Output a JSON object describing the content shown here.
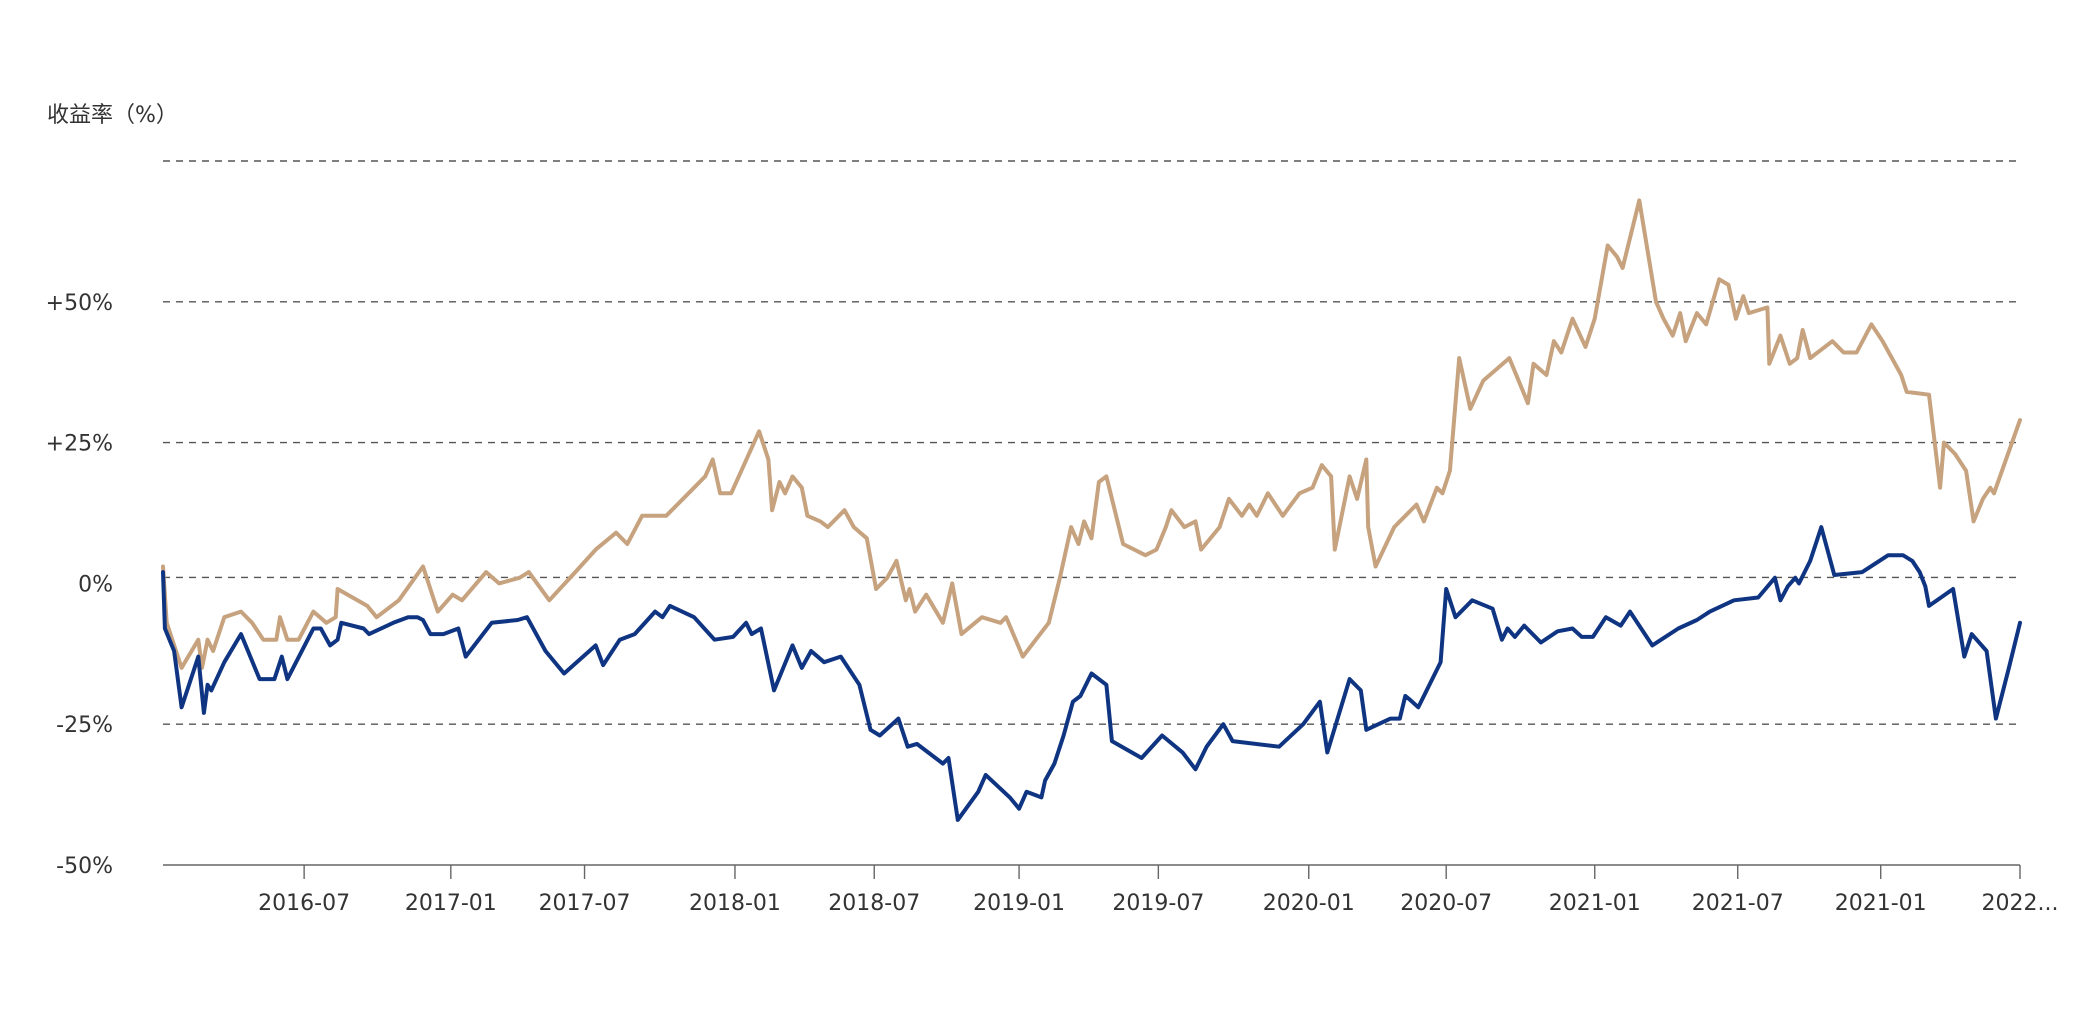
{
  "chart_data": {
    "type": "line",
    "ylabel": "收益率（%）",
    "y_ticks": [
      {
        "value": 50,
        "label": "+50%"
      },
      {
        "value": 25,
        "label": "+25%"
      },
      {
        "value": 0,
        "label": "0%"
      },
      {
        "value": -25,
        "label": "-25%"
      },
      {
        "value": -50,
        "label": "-50%"
      }
    ],
    "ylim": [
      -50,
      75
    ],
    "xlim": [
      0,
      100
    ],
    "x_ticks": [
      {
        "x": 7.6,
        "label": "2016-07"
      },
      {
        "x": 15.5,
        "label": "2017-01"
      },
      {
        "x": 22.7,
        "label": "2017-07"
      },
      {
        "x": 30.8,
        "label": "2018-01"
      },
      {
        "x": 38.3,
        "label": "2018-07"
      },
      {
        "x": 46.1,
        "label": "2019-01"
      },
      {
        "x": 53.6,
        "label": "2019-07"
      },
      {
        "x": 61.7,
        "label": "2020-01"
      },
      {
        "x": 69.1,
        "label": "2020-07"
      },
      {
        "x": 77.1,
        "label": "2021-01"
      },
      {
        "x": 84.8,
        "label": "2021-07"
      },
      {
        "x": 92.5,
        "label": "2021-01"
      },
      {
        "x": 100,
        "label": "2022..."
      }
    ],
    "grid": true,
    "series": [
      {
        "color": "#c6a27e",
        "points": [
          [
            0,
            3
          ],
          [
            0.2,
            -7
          ],
          [
            1,
            -15
          ],
          [
            1.9,
            -10
          ],
          [
            2.1,
            -15
          ],
          [
            2.4,
            -10
          ],
          [
            2.7,
            -12
          ],
          [
            3.3,
            -6
          ],
          [
            4.2,
            -5
          ],
          [
            4.8,
            -7
          ],
          [
            5.4,
            -10
          ],
          [
            6.1,
            -10
          ],
          [
            6.3,
            -6
          ],
          [
            6.7,
            -10
          ],
          [
            7.3,
            -10
          ],
          [
            8.1,
            -5
          ],
          [
            8.8,
            -7
          ],
          [
            9.3,
            -6
          ],
          [
            9.4,
            -1
          ],
          [
            11,
            -4
          ],
          [
            11.5,
            -6
          ],
          [
            12.7,
            -3
          ],
          [
            14,
            3
          ],
          [
            14.8,
            -5
          ],
          [
            15.6,
            -2
          ],
          [
            16.1,
            -3
          ],
          [
            17.4,
            2
          ],
          [
            18.1,
            0
          ],
          [
            19.2,
            1
          ],
          [
            19.7,
            2
          ],
          [
            20.8,
            -3
          ],
          [
            22.2,
            2
          ],
          [
            23.3,
            6
          ],
          [
            24.4,
            9
          ],
          [
            25,
            7
          ],
          [
            25.8,
            12
          ],
          [
            27.1,
            12
          ],
          [
            28.6,
            17
          ],
          [
            29.2,
            19
          ],
          [
            29.6,
            22
          ],
          [
            30,
            16
          ],
          [
            30.6,
            16
          ],
          [
            32.1,
            27
          ],
          [
            32.6,
            22
          ],
          [
            32.8,
            13
          ],
          [
            33.2,
            18
          ],
          [
            33.5,
            16
          ],
          [
            33.9,
            19
          ],
          [
            34.4,
            17
          ],
          [
            34.7,
            12
          ],
          [
            35.4,
            11
          ],
          [
            35.8,
            10
          ],
          [
            36.7,
            13
          ],
          [
            37.2,
            10
          ],
          [
            37.9,
            8
          ],
          [
            38.4,
            -1
          ],
          [
            39,
            1
          ],
          [
            39.5,
            4
          ],
          [
            40,
            -3
          ],
          [
            40.2,
            -1
          ],
          [
            40.5,
            -5
          ],
          [
            41.1,
            -2
          ],
          [
            42,
            -7
          ],
          [
            42.5,
            0
          ],
          [
            43,
            -9
          ],
          [
            44.1,
            -6
          ],
          [
            45.1,
            -7
          ],
          [
            45.4,
            -6
          ],
          [
            46.3,
            -13
          ],
          [
            47.7,
            -7
          ],
          [
            48.3,
            1
          ],
          [
            48.9,
            10
          ],
          [
            49.3,
            7
          ],
          [
            49.6,
            11
          ],
          [
            50,
            8
          ],
          [
            50.4,
            18
          ],
          [
            50.8,
            19
          ],
          [
            51.7,
            7
          ],
          [
            52.9,
            5
          ],
          [
            53.5,
            6
          ],
          [
            54,
            10
          ],
          [
            54.3,
            13
          ],
          [
            55,
            10
          ],
          [
            55.6,
            11
          ],
          [
            55.9,
            6
          ],
          [
            56.9,
            10
          ],
          [
            57.4,
            15
          ],
          [
            58.1,
            12
          ],
          [
            58.5,
            14
          ],
          [
            58.9,
            12
          ],
          [
            59.5,
            16
          ],
          [
            60.3,
            12
          ],
          [
            61.2,
            16
          ],
          [
            61.9,
            17
          ],
          [
            62.4,
            21
          ],
          [
            62.9,
            19
          ],
          [
            63.1,
            6
          ],
          [
            63.9,
            19
          ],
          [
            64.3,
            15
          ],
          [
            64.8,
            22
          ],
          [
            64.9,
            10
          ],
          [
            65.3,
            3
          ],
          [
            66.3,
            10
          ],
          [
            67.5,
            14
          ],
          [
            67.9,
            11
          ],
          [
            68.6,
            17
          ],
          [
            68.9,
            16
          ],
          [
            69.3,
            20
          ],
          [
            69.8,
            40
          ],
          [
            70.4,
            31
          ],
          [
            71.1,
            36
          ],
          [
            72.5,
            40
          ],
          [
            73.5,
            32
          ],
          [
            73.8,
            39
          ],
          [
            74.5,
            37
          ],
          [
            74.9,
            43
          ],
          [
            75.3,
            41
          ],
          [
            75.9,
            47
          ],
          [
            76.6,
            42
          ],
          [
            77.1,
            47
          ],
          [
            77.8,
            60
          ],
          [
            78.3,
            58
          ],
          [
            78.6,
            56
          ],
          [
            79.5,
            68
          ],
          [
            80.4,
            50
          ],
          [
            80.8,
            47
          ],
          [
            81.3,
            44
          ],
          [
            81.7,
            48
          ],
          [
            82,
            43
          ],
          [
            82.6,
            48
          ],
          [
            83.1,
            46
          ],
          [
            83.8,
            54
          ],
          [
            84.3,
            53
          ],
          [
            84.7,
            47
          ],
          [
            85.1,
            51
          ],
          [
            85.4,
            48
          ],
          [
            86.4,
            49
          ],
          [
            86.5,
            39
          ],
          [
            87.1,
            44
          ],
          [
            87.6,
            39
          ],
          [
            88,
            40
          ],
          [
            88.3,
            45
          ],
          [
            88.7,
            40
          ],
          [
            89.9,
            43
          ],
          [
            90.5,
            41
          ],
          [
            91.2,
            41
          ],
          [
            92,
            46
          ],
          [
            92.6,
            43
          ],
          [
            93.6,
            37
          ],
          [
            93.9,
            34
          ],
          [
            95.1,
            33.5
          ],
          [
            95.7,
            17
          ],
          [
            95.9,
            25
          ],
          [
            96.5,
            23
          ],
          [
            97.1,
            20
          ],
          [
            97.5,
            11
          ],
          [
            98,
            15
          ],
          [
            98.4,
            17
          ],
          [
            98.6,
            16
          ],
          [
            100,
            29
          ]
        ]
      },
      {
        "color": "#0f3582",
        "points": [
          [
            0,
            2
          ],
          [
            0.1,
            -8
          ],
          [
            0.6,
            -12
          ],
          [
            1,
            -22
          ],
          [
            1.9,
            -13
          ],
          [
            2.2,
            -23
          ],
          [
            2.4,
            -18
          ],
          [
            2.6,
            -19
          ],
          [
            3.3,
            -14
          ],
          [
            4.2,
            -9
          ],
          [
            5.2,
            -17
          ],
          [
            6,
            -17
          ],
          [
            6.4,
            -13
          ],
          [
            6.7,
            -17
          ],
          [
            8.1,
            -8
          ],
          [
            8.5,
            -8
          ],
          [
            9,
            -11
          ],
          [
            9.4,
            -10
          ],
          [
            9.6,
            -7
          ],
          [
            10.8,
            -8
          ],
          [
            11.1,
            -9
          ],
          [
            12.4,
            -7
          ],
          [
            13.2,
            -6
          ],
          [
            13.7,
            -6
          ],
          [
            14,
            -6.5
          ],
          [
            14.4,
            -9
          ],
          [
            15.1,
            -9
          ],
          [
            15.9,
            -8
          ],
          [
            16.3,
            -13
          ],
          [
            17.7,
            -7
          ],
          [
            19.1,
            -6.5
          ],
          [
            19.6,
            -6
          ],
          [
            20.6,
            -12
          ],
          [
            21.6,
            -16
          ],
          [
            23.3,
            -11
          ],
          [
            23.7,
            -14.5
          ],
          [
            24.6,
            -10
          ],
          [
            25.4,
            -9
          ],
          [
            26.5,
            -5
          ],
          [
            26.9,
            -6
          ],
          [
            27.3,
            -4
          ],
          [
            28.6,
            -6
          ],
          [
            29.7,
            -10
          ],
          [
            30.7,
            -9.5
          ],
          [
            31.4,
            -7
          ],
          [
            31.7,
            -9
          ],
          [
            32.2,
            -8
          ],
          [
            32.9,
            -19
          ],
          [
            33.9,
            -11
          ],
          [
            34.4,
            -15
          ],
          [
            34.9,
            -12
          ],
          [
            35.6,
            -14
          ],
          [
            36.5,
            -13
          ],
          [
            37.5,
            -18
          ],
          [
            38.1,
            -26
          ],
          [
            38.6,
            -27
          ],
          [
            39.6,
            -24
          ],
          [
            40.1,
            -29
          ],
          [
            40.6,
            -28.5
          ],
          [
            42,
            -32
          ],
          [
            42.3,
            -31
          ],
          [
            42.8,
            -42
          ],
          [
            43.9,
            -37
          ],
          [
            44.3,
            -34
          ],
          [
            45.6,
            -38
          ],
          [
            46.1,
            -40
          ],
          [
            46.5,
            -37
          ],
          [
            47.3,
            -38
          ],
          [
            47.5,
            -35
          ],
          [
            48,
            -32
          ],
          [
            48.5,
            -27
          ],
          [
            49,
            -21
          ],
          [
            49.4,
            -20
          ],
          [
            50,
            -16
          ],
          [
            50.8,
            -18
          ],
          [
            51.1,
            -28
          ],
          [
            52.7,
            -31
          ],
          [
            53.8,
            -27
          ],
          [
            54.9,
            -30
          ],
          [
            55.6,
            -33
          ],
          [
            56.2,
            -29
          ],
          [
            57.1,
            -25
          ],
          [
            57.6,
            -28
          ],
          [
            60.1,
            -29
          ],
          [
            61.4,
            -25
          ],
          [
            62.3,
            -21
          ],
          [
            62.7,
            -30
          ],
          [
            63.9,
            -17
          ],
          [
            64.5,
            -19
          ],
          [
            64.8,
            -26
          ],
          [
            66.1,
            -24
          ],
          [
            66.6,
            -24
          ],
          [
            66.9,
            -20
          ],
          [
            67.1,
            -20.5
          ],
          [
            67.6,
            -22
          ],
          [
            68.8,
            -14
          ],
          [
            69.1,
            -1
          ],
          [
            69.6,
            -6
          ],
          [
            70.5,
            -3
          ],
          [
            71.6,
            -4.5
          ],
          [
            72.1,
            -10
          ],
          [
            72.4,
            -8
          ],
          [
            72.8,
            -9.5
          ],
          [
            73.3,
            -7.5
          ],
          [
            74.2,
            -10.5
          ],
          [
            75.1,
            -8.5
          ],
          [
            75.9,
            -8
          ],
          [
            76.4,
            -9.5
          ],
          [
            77,
            -9.5
          ],
          [
            77.7,
            -6
          ],
          [
            78.5,
            -7.5
          ],
          [
            79,
            -5
          ],
          [
            80.2,
            -11
          ],
          [
            81.6,
            -8
          ],
          [
            82.6,
            -6.5
          ],
          [
            83.3,
            -5
          ],
          [
            84.6,
            -3
          ],
          [
            85.9,
            -2.5
          ],
          [
            86.8,
            1
          ],
          [
            87.1,
            -3
          ],
          [
            87.5,
            -0.5
          ],
          [
            87.9,
            1
          ],
          [
            88.1,
            0
          ],
          [
            88.7,
            4
          ],
          [
            89.3,
            10
          ],
          [
            90,
            1.5
          ],
          [
            91.5,
            2
          ],
          [
            92.9,
            5
          ],
          [
            93.7,
            5
          ],
          [
            94.2,
            4
          ],
          [
            94.6,
            2
          ],
          [
            94.9,
            -0.5
          ],
          [
            95.1,
            -4
          ],
          [
            96.4,
            -1
          ],
          [
            97,
            -13
          ],
          [
            97.4,
            -9
          ],
          [
            98.2,
            -12
          ],
          [
            98.7,
            -24
          ],
          [
            99.4,
            -15
          ],
          [
            100,
            -7
          ]
        ]
      }
    ]
  }
}
